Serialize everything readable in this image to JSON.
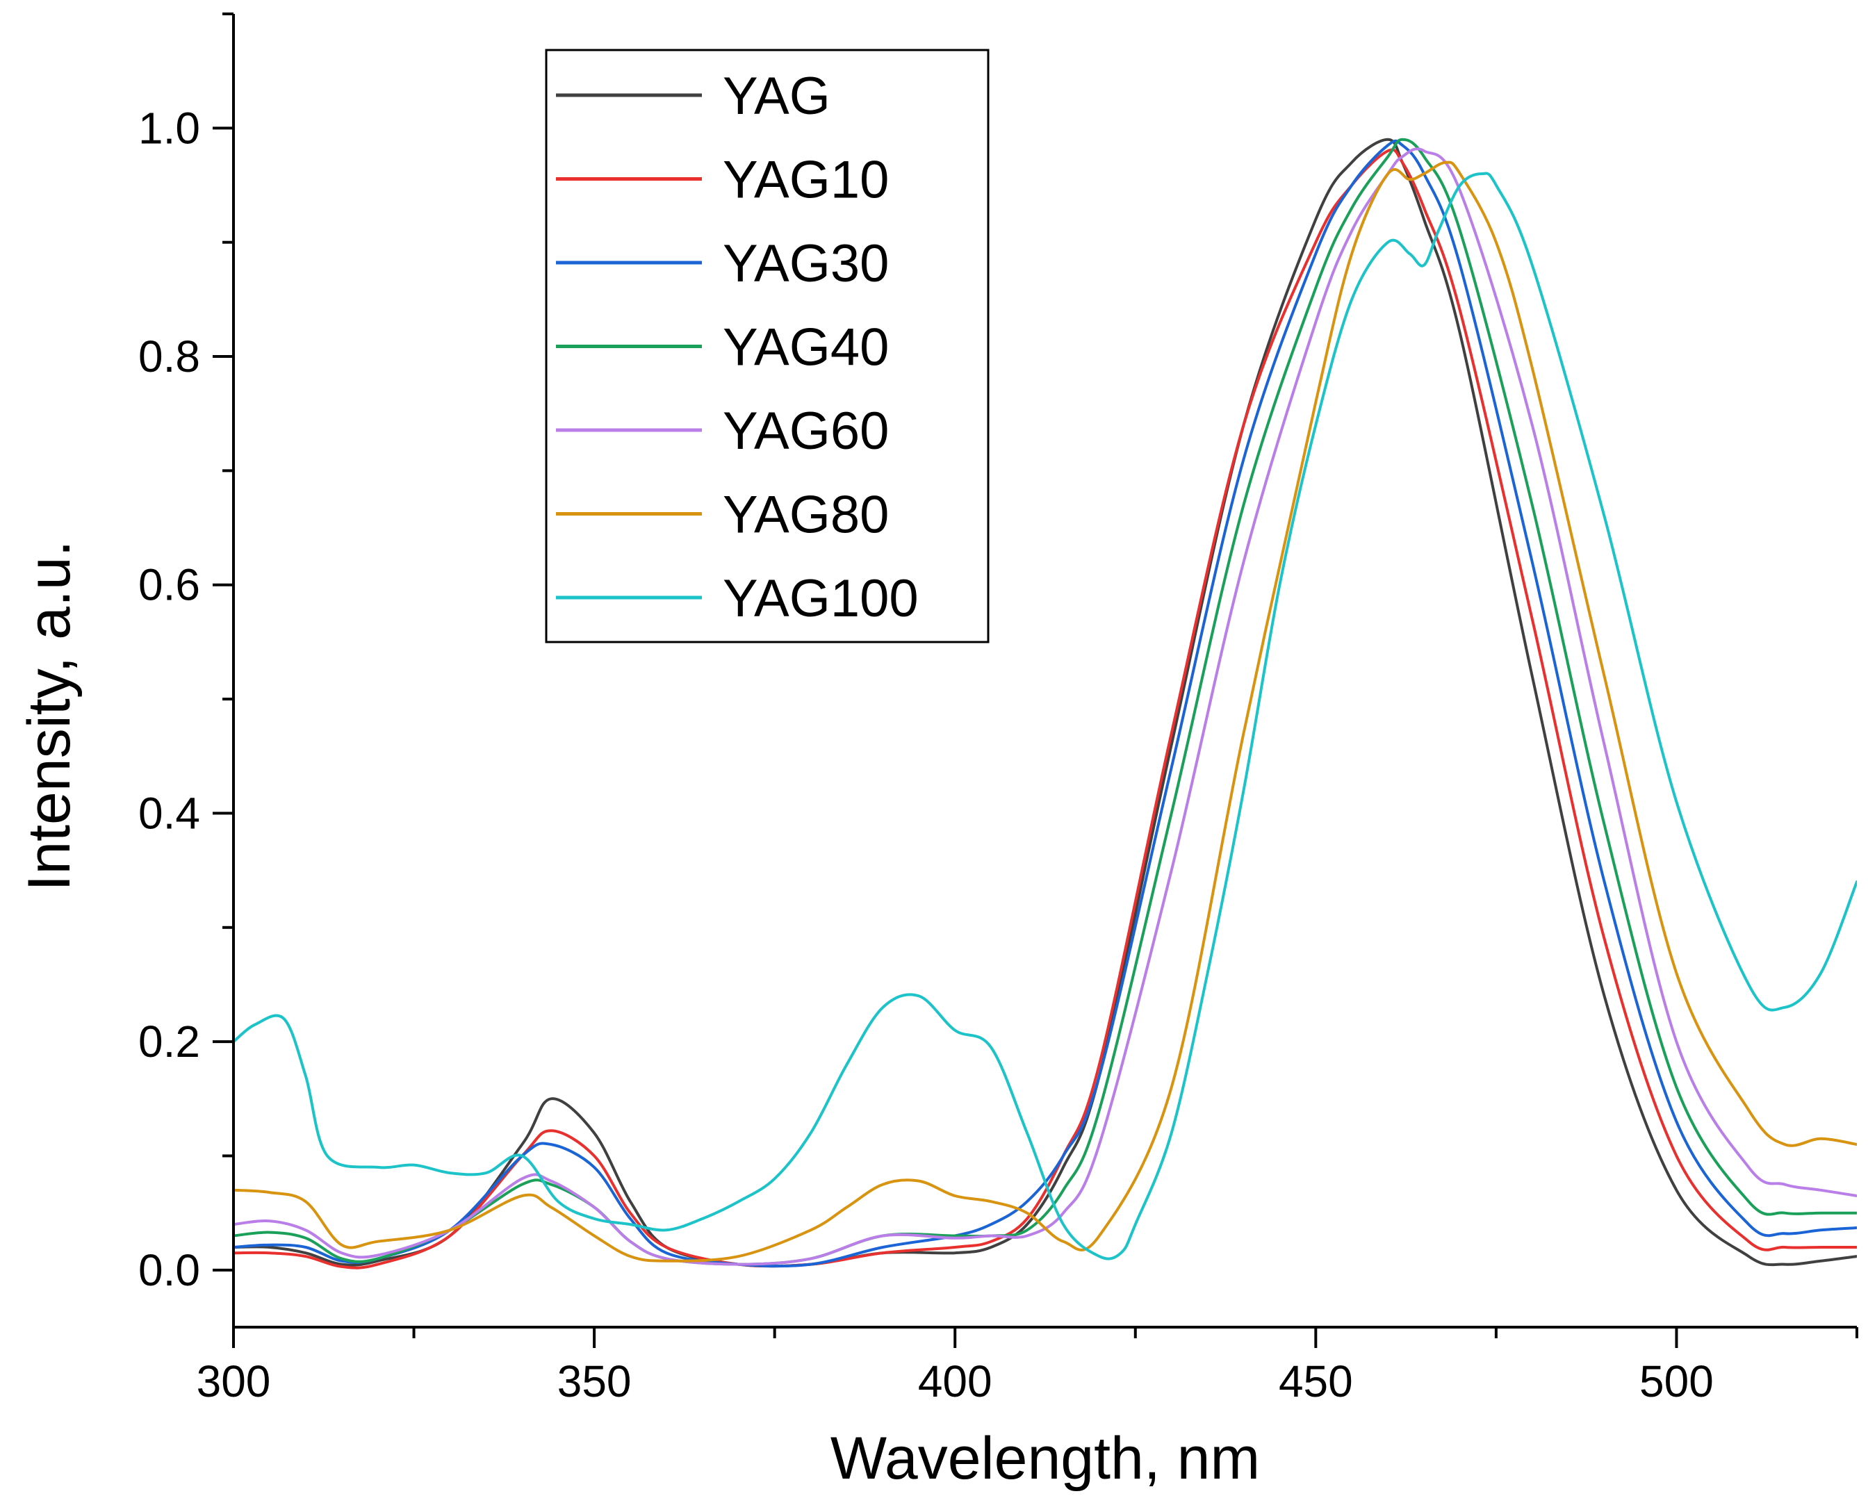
{
  "chart_data": {
    "type": "line",
    "title": "",
    "xlabel": "Wavelength, nm",
    "ylabel": "Intensity, a.u.",
    "xlim": [
      300,
      525
    ],
    "ylim": [
      -0.05,
      1.1
    ],
    "x_ticks": [
      300,
      350,
      400,
      450,
      500
    ],
    "x_tick_labels": [
      "300",
      "350",
      "400",
      "450",
      "500"
    ],
    "y_ticks": [
      0.0,
      0.2,
      0.4,
      0.6,
      0.8,
      1.0
    ],
    "y_tick_labels": [
      "0.0",
      "0.2",
      "0.4",
      "0.6",
      "0.8",
      "1.0"
    ],
    "legend_position": "top-left",
    "series": [
      {
        "name": "YAG",
        "color": "#404040",
        "x": [
          300,
          305,
          310,
          315,
          320,
          330,
          340,
          344,
          350,
          355,
          360,
          370,
          380,
          390,
          400,
          405,
          410,
          415,
          420,
          430,
          440,
          450,
          455,
          460,
          462,
          465,
          470,
          480,
          490,
          500,
          510,
          515,
          520,
          525
        ],
        "y": [
          0.02,
          0.02,
          0.015,
          0.005,
          0.008,
          0.03,
          0.11,
          0.15,
          0.12,
          0.06,
          0.02,
          0.005,
          0.005,
          0.015,
          0.015,
          0.02,
          0.04,
          0.09,
          0.17,
          0.46,
          0.74,
          0.92,
          0.97,
          0.99,
          0.97,
          0.92,
          0.82,
          0.52,
          0.24,
          0.07,
          0.012,
          0.005,
          0.008,
          0.012
        ]
      },
      {
        "name": "YAG10",
        "color": "#e8312f",
        "x": [
          300,
          305,
          310,
          315,
          320,
          330,
          340,
          344,
          350,
          355,
          360,
          370,
          380,
          390,
          400,
          405,
          410,
          415,
          420,
          430,
          440,
          450,
          455,
          460,
          462,
          465,
          470,
          480,
          490,
          500,
          510,
          515,
          520,
          525
        ],
        "y": [
          0.015,
          0.015,
          0.012,
          0.003,
          0.005,
          0.03,
          0.1,
          0.122,
          0.1,
          0.05,
          0.02,
          0.005,
          0.005,
          0.015,
          0.02,
          0.025,
          0.045,
          0.1,
          0.18,
          0.47,
          0.74,
          0.9,
          0.95,
          0.98,
          0.97,
          0.93,
          0.84,
          0.57,
          0.29,
          0.1,
          0.025,
          0.02,
          0.02,
          0.02
        ]
      },
      {
        "name": "YAG30",
        "color": "#1a64d6",
        "x": [
          300,
          305,
          310,
          315,
          320,
          330,
          340,
          344,
          350,
          355,
          360,
          370,
          380,
          390,
          400,
          405,
          410,
          415,
          420,
          430,
          440,
          450,
          455,
          460,
          462,
          465,
          470,
          480,
          490,
          500,
          510,
          515,
          520,
          525
        ],
        "y": [
          0.02,
          0.022,
          0.02,
          0.008,
          0.01,
          0.035,
          0.1,
          0.11,
          0.09,
          0.045,
          0.015,
          0.005,
          0.005,
          0.02,
          0.03,
          0.04,
          0.06,
          0.1,
          0.17,
          0.44,
          0.71,
          0.89,
          0.95,
          0.985,
          0.985,
          0.96,
          0.88,
          0.62,
          0.34,
          0.13,
          0.04,
          0.032,
          0.035,
          0.037
        ]
      },
      {
        "name": "YAG40",
        "color": "#1ba05a",
        "x": [
          300,
          305,
          310,
          315,
          320,
          330,
          340,
          344,
          350,
          355,
          360,
          370,
          380,
          390,
          400,
          405,
          410,
          415,
          420,
          430,
          440,
          450,
          455,
          460,
          462,
          465,
          470,
          480,
          490,
          500,
          510,
          515,
          520,
          525
        ],
        "y": [
          0.03,
          0.033,
          0.028,
          0.01,
          0.01,
          0.035,
          0.075,
          0.075,
          0.055,
          0.025,
          0.01,
          0.005,
          0.01,
          0.03,
          0.03,
          0.03,
          0.035,
          0.07,
          0.14,
          0.4,
          0.67,
          0.86,
          0.93,
          0.975,
          0.99,
          0.975,
          0.91,
          0.67,
          0.39,
          0.16,
          0.06,
          0.05,
          0.05,
          0.05
        ]
      },
      {
        "name": "YAG60",
        "color": "#b97ee8",
        "x": [
          300,
          305,
          310,
          315,
          320,
          330,
          340,
          344,
          350,
          355,
          360,
          370,
          380,
          390,
          400,
          405,
          410,
          415,
          420,
          430,
          440,
          450,
          455,
          460,
          462,
          465,
          470,
          480,
          490,
          500,
          510,
          515,
          520,
          525
        ],
        "y": [
          0.04,
          0.043,
          0.035,
          0.015,
          0.013,
          0.035,
          0.08,
          0.078,
          0.055,
          0.025,
          0.01,
          0.005,
          0.01,
          0.03,
          0.028,
          0.03,
          0.03,
          0.05,
          0.11,
          0.35,
          0.62,
          0.83,
          0.91,
          0.96,
          0.975,
          0.98,
          0.945,
          0.74,
          0.46,
          0.2,
          0.09,
          0.075,
          0.07,
          0.065
        ]
      },
      {
        "name": "YAG80",
        "color": "#d89410",
        "x": [
          300,
          305,
          310,
          315,
          320,
          330,
          340,
          344,
          350,
          355,
          360,
          370,
          380,
          385,
          390,
          395,
          400,
          405,
          410,
          415,
          420,
          430,
          440,
          450,
          455,
          460,
          463,
          465,
          468,
          470,
          475,
          480,
          490,
          500,
          510,
          515,
          520,
          525
        ],
        "y": [
          0.07,
          0.068,
          0.06,
          0.022,
          0.025,
          0.035,
          0.065,
          0.055,
          0.03,
          0.012,
          0.008,
          0.012,
          0.035,
          0.055,
          0.075,
          0.078,
          0.065,
          0.06,
          0.05,
          0.025,
          0.03,
          0.16,
          0.47,
          0.76,
          0.89,
          0.96,
          0.955,
          0.96,
          0.97,
          0.96,
          0.9,
          0.79,
          0.52,
          0.26,
          0.14,
          0.11,
          0.115,
          0.11
        ]
      },
      {
        "name": "YAG100",
        "color": "#1cc3c8",
        "x": [
          300,
          303,
          307,
          310,
          313,
          320,
          325,
          330,
          335,
          340,
          345,
          350,
          355,
          360,
          365,
          370,
          375,
          380,
          385,
          390,
          395,
          400,
          405,
          410,
          415,
          420,
          423,
          425,
          430,
          435,
          440,
          445,
          450,
          455,
          460,
          463,
          465,
          467,
          470,
          473,
          475,
          480,
          490,
          500,
          510,
          515,
          520,
          525
        ],
        "y": [
          0.2,
          0.215,
          0.22,
          0.17,
          0.1,
          0.09,
          0.092,
          0.085,
          0.085,
          0.1,
          0.06,
          0.045,
          0.04,
          0.035,
          0.045,
          0.06,
          0.08,
          0.12,
          0.18,
          0.23,
          0.24,
          0.21,
          0.195,
          0.12,
          0.04,
          0.012,
          0.015,
          0.04,
          0.12,
          0.26,
          0.42,
          0.6,
          0.74,
          0.85,
          0.9,
          0.89,
          0.88,
          0.91,
          0.95,
          0.96,
          0.95,
          0.88,
          0.66,
          0.41,
          0.25,
          0.23,
          0.26,
          0.34
        ]
      }
    ]
  }
}
